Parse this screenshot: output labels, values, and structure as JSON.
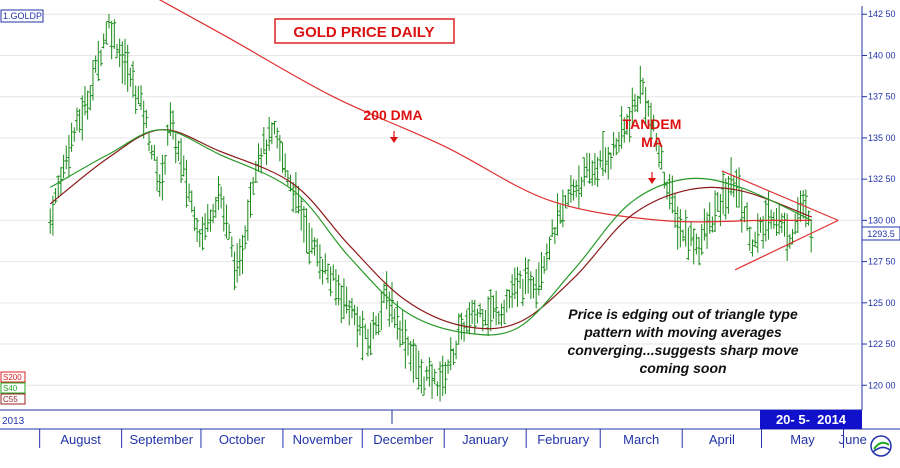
{
  "symbol": "1.GOLDP",
  "date_badge": "20- 5-  2014",
  "year_label": "2013",
  "last_price_label": "1293.5",
  "indicator_tags": [
    {
      "text": "S200",
      "color": "#dd2222"
    },
    {
      "text": "S40",
      "color": "#22aa22"
    },
    {
      "text": "C55",
      "color": "#992222"
    }
  ],
  "annotations": {
    "dma200": "200 DMA",
    "tandem_line1": "TANDEM",
    "tandem_line2": "MA",
    "commentary": [
      "Price is edging out of triangle type",
      "pattern with moving averages",
      "converging...suggests sharp move",
      "coming soon"
    ]
  },
  "colors": {
    "bars": "#1a8a1a",
    "sma200": "#e03030",
    "sma40": "#2a9a2a",
    "ma55": "#8b1a1a",
    "triangle": "#e03030",
    "grid": "#e6e6e6",
    "axis_text": "#2233aa",
    "badge_bg": "#1111cc",
    "annotation": "#dd1111"
  },
  "chart_data": {
    "type": "ohlc",
    "title": "GOLD PRICE DAILY",
    "y_axis": {
      "min": 1185,
      "max": 1430,
      "ticks": [
        1200,
        1225,
        1250,
        1275,
        1300,
        1325,
        1350,
        1375,
        1400,
        1425
      ],
      "tick_labels": [
        "120 00",
        "122 50",
        "125 00",
        "127 50",
        "130 00",
        "132 50",
        "135 00",
        "137 50",
        "140 00",
        "142 50"
      ]
    },
    "months": [
      "August",
      "September",
      "October",
      "November",
      "December",
      "January",
      "February",
      "March",
      "April",
      "May",
      "June"
    ],
    "price_series": [
      {
        "date": "2013-08-05",
        "value": 1300
      },
      {
        "date": "2013-08-12",
        "value": 1345
      },
      {
        "date": "2013-08-19",
        "value": 1372
      },
      {
        "date": "2013-08-27",
        "value": 1420
      },
      {
        "date": "2013-09-03",
        "value": 1392
      },
      {
        "date": "2013-09-09",
        "value": 1368
      },
      {
        "date": "2013-09-16",
        "value": 1318
      },
      {
        "date": "2013-09-19",
        "value": 1362
      },
      {
        "date": "2013-09-24",
        "value": 1332
      },
      {
        "date": "2013-10-01",
        "value": 1290
      },
      {
        "date": "2013-10-08",
        "value": 1318
      },
      {
        "date": "2013-10-15",
        "value": 1265
      },
      {
        "date": "2013-10-22",
        "value": 1338
      },
      {
        "date": "2013-10-29",
        "value": 1352
      },
      {
        "date": "2013-11-05",
        "value": 1318
      },
      {
        "date": "2013-11-12",
        "value": 1285
      },
      {
        "date": "2013-11-19",
        "value": 1265
      },
      {
        "date": "2013-11-26",
        "value": 1248
      },
      {
        "date": "2013-12-03",
        "value": 1225
      },
      {
        "date": "2013-12-10",
        "value": 1255
      },
      {
        "date": "2013-12-17",
        "value": 1230
      },
      {
        "date": "2013-12-23",
        "value": 1205
      },
      {
        "date": "2013-12-31",
        "value": 1202
      },
      {
        "date": "2014-01-08",
        "value": 1235
      },
      {
        "date": "2014-01-15",
        "value": 1245
      },
      {
        "date": "2014-01-22",
        "value": 1245
      },
      {
        "date": "2014-01-29",
        "value": 1260
      },
      {
        "date": "2014-02-05",
        "value": 1265
      },
      {
        "date": "2014-02-12",
        "value": 1295
      },
      {
        "date": "2014-02-19",
        "value": 1320
      },
      {
        "date": "2014-02-26",
        "value": 1330
      },
      {
        "date": "2014-03-05",
        "value": 1340
      },
      {
        "date": "2014-03-12",
        "value": 1360
      },
      {
        "date": "2014-03-17",
        "value": 1382
      },
      {
        "date": "2014-03-24",
        "value": 1335
      },
      {
        "date": "2014-03-31",
        "value": 1295
      },
      {
        "date": "2014-04-07",
        "value": 1285
      },
      {
        "date": "2014-04-14",
        "value": 1305
      },
      {
        "date": "2014-04-21",
        "value": 1325
      },
      {
        "date": "2014-04-28",
        "value": 1285
      },
      {
        "date": "2014-05-05",
        "value": 1305
      },
      {
        "date": "2014-05-12",
        "value": 1290
      },
      {
        "date": "2014-05-16",
        "value": 1310
      },
      {
        "date": "2014-05-20",
        "value": 1294
      }
    ],
    "sma200": [
      {
        "date": "2013-08-28",
        "value": 1450
      },
      {
        "date": "2013-10-10",
        "value": 1412
      },
      {
        "date": "2013-11-20",
        "value": 1375
      },
      {
        "date": "2014-01-01",
        "value": 1345
      },
      {
        "date": "2014-02-10",
        "value": 1312
      },
      {
        "date": "2014-03-24",
        "value": 1300
      },
      {
        "date": "2014-05-02",
        "value": 1300
      },
      {
        "date": "2014-05-20",
        "value": 1300
      }
    ],
    "sma40": [
      {
        "date": "2013-08-05",
        "value": 1320
      },
      {
        "date": "2013-08-27",
        "value": 1340
      },
      {
        "date": "2013-09-16",
        "value": 1355
      },
      {
        "date": "2013-10-08",
        "value": 1340
      },
      {
        "date": "2013-11-05",
        "value": 1318
      },
      {
        "date": "2013-11-26",
        "value": 1278
      },
      {
        "date": "2013-12-17",
        "value": 1245
      },
      {
        "date": "2014-01-08",
        "value": 1232
      },
      {
        "date": "2014-01-29",
        "value": 1235
      },
      {
        "date": "2014-02-19",
        "value": 1270
      },
      {
        "date": "2014-03-12",
        "value": 1310
      },
      {
        "date": "2014-04-02",
        "value": 1325
      },
      {
        "date": "2014-04-23",
        "value": 1320
      },
      {
        "date": "2014-05-20",
        "value": 1300
      }
    ],
    "ma55": [
      {
        "date": "2013-08-05",
        "value": 1310
      },
      {
        "date": "2013-08-27",
        "value": 1338
      },
      {
        "date": "2013-09-16",
        "value": 1355
      },
      {
        "date": "2013-10-08",
        "value": 1342
      },
      {
        "date": "2013-11-05",
        "value": 1322
      },
      {
        "date": "2013-11-26",
        "value": 1285
      },
      {
        "date": "2013-12-17",
        "value": 1252
      },
      {
        "date": "2014-01-08",
        "value": 1236
      },
      {
        "date": "2014-01-29",
        "value": 1238
      },
      {
        "date": "2014-02-19",
        "value": 1265
      },
      {
        "date": "2014-03-12",
        "value": 1302
      },
      {
        "date": "2014-04-02",
        "value": 1318
      },
      {
        "date": "2014-04-23",
        "value": 1318
      },
      {
        "date": "2014-05-20",
        "value": 1302
      }
    ],
    "triangle": {
      "upper": [
        {
          "date": "2014-04-16",
          "value": 1330
        },
        {
          "date": "2014-05-30",
          "value": 1300
        }
      ],
      "lower": [
        {
          "date": "2014-04-21",
          "value": 1270
        },
        {
          "date": "2014-05-30",
          "value": 1300
        }
      ]
    },
    "grid": true,
    "y_axis_side": "right"
  }
}
